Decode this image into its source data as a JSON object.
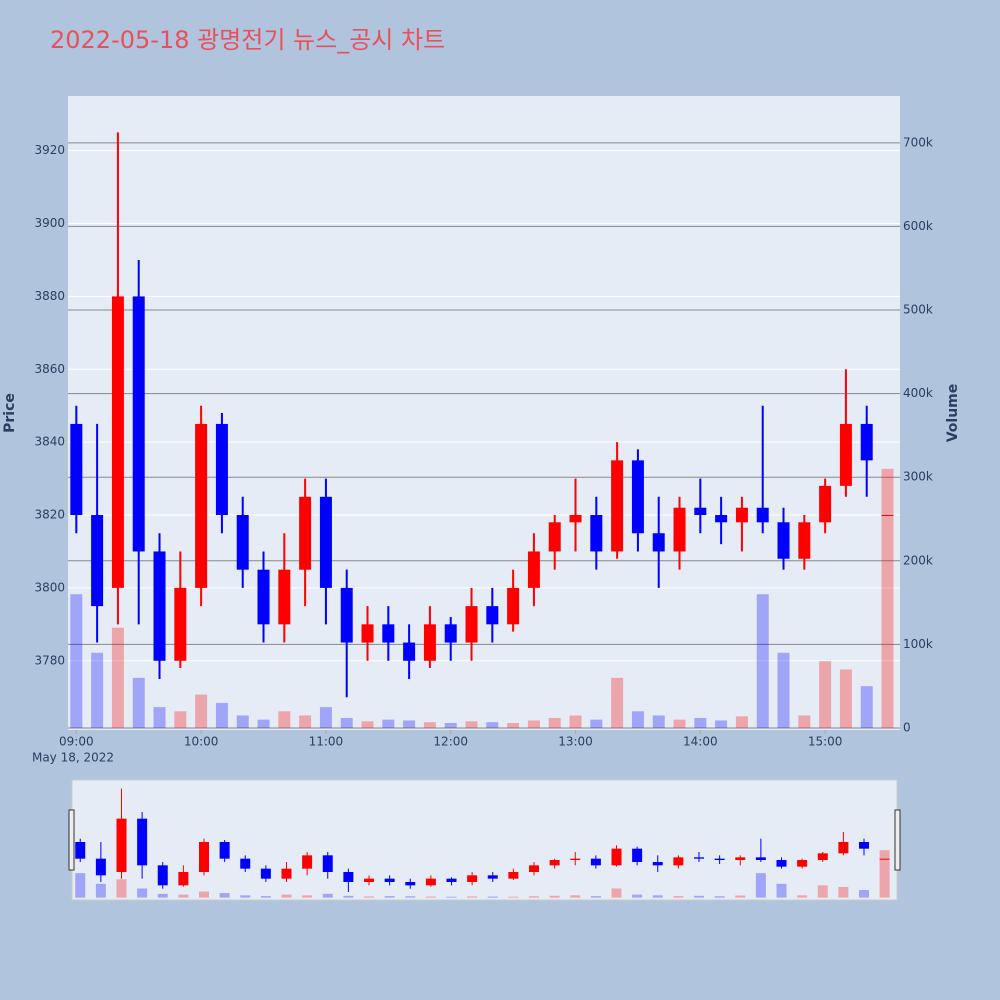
{
  "chart_data": {
    "type": "candlestick",
    "title": "2022-05-18 광명전기 뉴스_공시 차트",
    "ylabel": "Price",
    "y2label": "Volume",
    "x_date_label": "May 18, 2022",
    "increasing_color": "#ff0000",
    "decreasing_color": "#0000ff",
    "grid": true,
    "rangeslider": true,
    "x": [
      "2022-05-18 09:00",
      "2022-05-18 09:10",
      "2022-05-18 09:20",
      "2022-05-18 09:30",
      "2022-05-18 09:40",
      "2022-05-18 09:50",
      "2022-05-18 10:00",
      "2022-05-18 10:10",
      "2022-05-18 10:20",
      "2022-05-18 10:30",
      "2022-05-18 10:40",
      "2022-05-18 10:50",
      "2022-05-18 11:00",
      "2022-05-18 11:10",
      "2022-05-18 11:20",
      "2022-05-18 11:30",
      "2022-05-18 11:40",
      "2022-05-18 11:50",
      "2022-05-18 12:00",
      "2022-05-18 12:10",
      "2022-05-18 12:20",
      "2022-05-18 12:30",
      "2022-05-18 12:40",
      "2022-05-18 12:50",
      "2022-05-18 13:00",
      "2022-05-18 13:10",
      "2022-05-18 13:20",
      "2022-05-18 13:30",
      "2022-05-18 13:40",
      "2022-05-18 13:50",
      "2022-05-18 14:00",
      "2022-05-18 14:10",
      "2022-05-18 14:20",
      "2022-05-18 14:30",
      "2022-05-18 14:40",
      "2022-05-18 14:50",
      "2022-05-18 15:00",
      "2022-05-18 15:10",
      "2022-05-18 15:20",
      "2022-05-18 15:30"
    ],
    "open": [
      3845,
      3820,
      3800,
      3880,
      3810,
      3780,
      3800,
      3845,
      3820,
      3805,
      3790,
      3805,
      3825,
      3800,
      3785,
      3790,
      3785,
      3780,
      3790,
      3785,
      3795,
      3790,
      3800,
      3810,
      3818,
      3820,
      3810,
      3835,
      3815,
      3810,
      3822,
      3820,
      3818,
      3822,
      3818,
      3808,
      3818,
      3828,
      3845,
      3820
    ],
    "high": [
      3850,
      3845,
      3925,
      3890,
      3815,
      3810,
      3850,
      3848,
      3825,
      3810,
      3815,
      3830,
      3830,
      3805,
      3795,
      3795,
      3790,
      3795,
      3792,
      3800,
      3800,
      3805,
      3815,
      3820,
      3830,
      3825,
      3840,
      3838,
      3825,
      3825,
      3830,
      3825,
      3825,
      3850,
      3822,
      3820,
      3830,
      3860,
      3850,
      3820
    ],
    "low": [
      3815,
      3785,
      3790,
      3790,
      3775,
      3778,
      3795,
      3815,
      3800,
      3785,
      3785,
      3795,
      3790,
      3770,
      3780,
      3780,
      3775,
      3778,
      3780,
      3780,
      3785,
      3788,
      3795,
      3805,
      3810,
      3805,
      3808,
      3810,
      3800,
      3805,
      3815,
      3812,
      3810,
      3815,
      3805,
      3805,
      3815,
      3825,
      3825,
      3820
    ],
    "close": [
      3820,
      3795,
      3880,
      3810,
      3780,
      3800,
      3845,
      3820,
      3805,
      3790,
      3805,
      3825,
      3800,
      3785,
      3790,
      3785,
      3780,
      3790,
      3785,
      3795,
      3790,
      3800,
      3810,
      3818,
      3820,
      3810,
      3835,
      3815,
      3810,
      3822,
      3820,
      3818,
      3822,
      3818,
      3808,
      3818,
      3828,
      3845,
      3835,
      3820
    ],
    "volume": [
      160000,
      90000,
      120000,
      60000,
      25000,
      20000,
      40000,
      30000,
      15000,
      10000,
      20000,
      15000,
      25000,
      12000,
      8000,
      10000,
      9000,
      7000,
      6000,
      8000,
      7000,
      6000,
      9000,
      12000,
      15000,
      10000,
      60000,
      20000,
      15000,
      10000,
      12000,
      9000,
      14000,
      160000,
      90000,
      15000,
      80000,
      70000,
      50000,
      310000
    ],
    "xlim": [
      "2022-05-18 08:56",
      "2022-05-18 15:36"
    ],
    "xticks": [
      {
        "value": "2022-05-18 09:00",
        "label": "09:00"
      },
      {
        "value": "2022-05-18 10:00",
        "label": "10:00"
      },
      {
        "value": "2022-05-18 11:00",
        "label": "11:00"
      },
      {
        "value": "2022-05-18 12:00",
        "label": "12:00"
      },
      {
        "value": "2022-05-18 13:00",
        "label": "13:00"
      },
      {
        "value": "2022-05-18 14:00",
        "label": "14:00"
      },
      {
        "value": "2022-05-18 15:00",
        "label": "15:00"
      }
    ],
    "ylim": [
      3761,
      3935
    ],
    "yticks": [
      3780,
      3800,
      3820,
      3840,
      3860,
      3880,
      3900,
      3920
    ],
    "y2lim": [
      -2400,
      756000
    ],
    "y2ticks": [
      {
        "value": 0,
        "label": "0"
      },
      {
        "value": 100000,
        "label": "100k"
      },
      {
        "value": 200000,
        "label": "200k"
      },
      {
        "value": 300000,
        "label": "300k"
      },
      {
        "value": 400000,
        "label": "400k"
      },
      {
        "value": 500000,
        "label": "500k"
      },
      {
        "value": 600000,
        "label": "600k"
      },
      {
        "value": 700000,
        "label": "700k"
      }
    ]
  }
}
